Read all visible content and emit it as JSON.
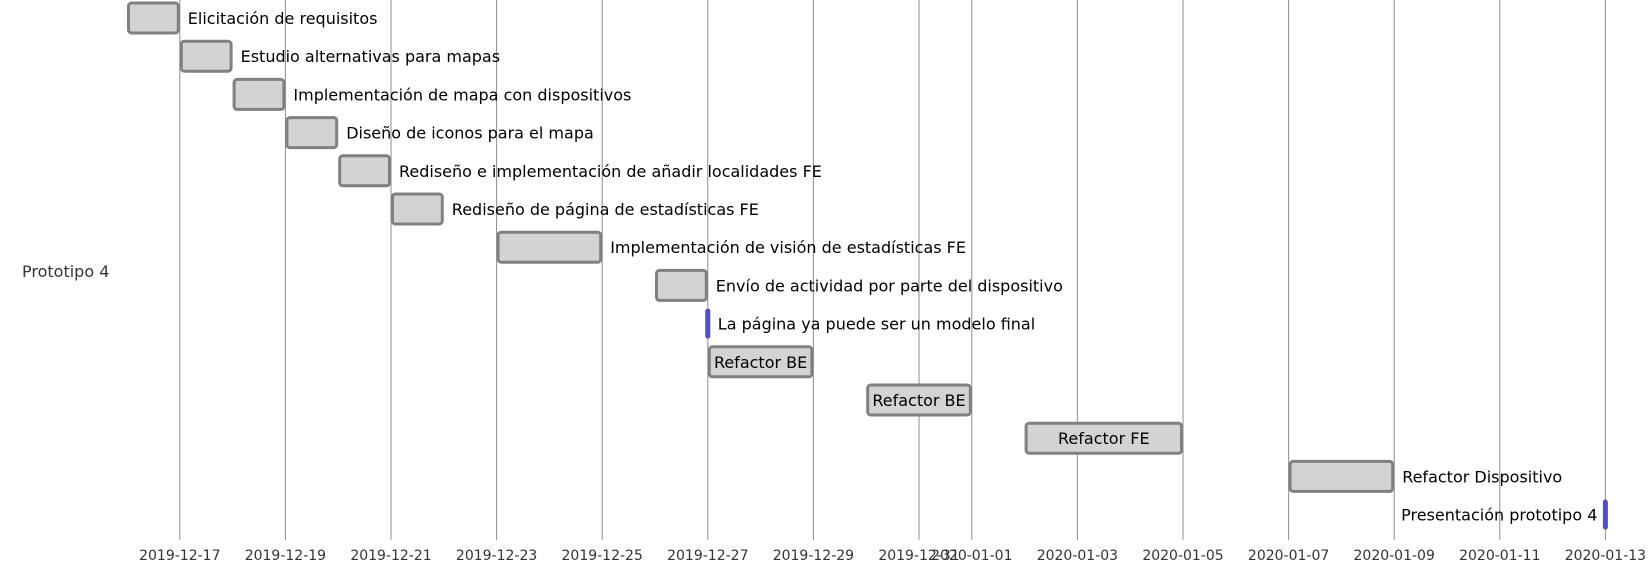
{
  "chart_data": {
    "type": "gantt",
    "section": "Prototipo 4",
    "x_range": [
      "2019-12-15",
      "2020-01-14"
    ],
    "x_ticks": [
      "2019-12-17",
      "2019-12-19",
      "2019-12-21",
      "2019-12-23",
      "2019-12-25",
      "2019-12-27",
      "2019-12-29",
      "2019-12-31",
      "2020-01-01",
      "2020-01-03",
      "2020-01-05",
      "2020-01-07",
      "2020-01-09",
      "2020-01-11",
      "2020-01-13"
    ],
    "colors": {
      "task_fill": "#d3d3d3",
      "task_stroke": "#808080",
      "milestone": "#5050c0",
      "grid": "#d3d3d3"
    },
    "tasks": [
      {
        "name": "Elicitación de requisitos",
        "start": "2019-12-16",
        "end": "2019-12-17",
        "label_position": "right"
      },
      {
        "name": "Estudio alternativas para mapas",
        "start": "2019-12-17",
        "end": "2019-12-18",
        "label_position": "right"
      },
      {
        "name": "Implementación de mapa con dispositivos",
        "start": "2019-12-18",
        "end": "2019-12-19",
        "label_position": "right"
      },
      {
        "name": "Diseño de iconos para el mapa",
        "start": "2019-12-19",
        "end": "2019-12-20",
        "label_position": "right"
      },
      {
        "name": "Rediseño e implementación de añadir localidades FE",
        "start": "2019-12-20",
        "end": "2019-12-21",
        "label_position": "right"
      },
      {
        "name": "Rediseño de página de estadísticas FE",
        "start": "2019-12-21",
        "end": "2019-12-22",
        "label_position": "right"
      },
      {
        "name": "Implementación de visión de estadísticas FE",
        "start": "2019-12-23",
        "end": "2019-12-25",
        "label_position": "right"
      },
      {
        "name": "Envío de actividad por parte del dispositivo",
        "start": "2019-12-26",
        "end": "2019-12-27",
        "label_position": "right"
      },
      {
        "name": "La página ya puede ser un modelo final",
        "start": "2019-12-27",
        "end": "2019-12-27",
        "milestone": true,
        "label_position": "right"
      },
      {
        "name": "Refactor BE",
        "start": "2019-12-27",
        "end": "2019-12-29",
        "label_position": "inside"
      },
      {
        "name": "Refactor BE",
        "start": "2019-12-30",
        "end": "2020-01-01",
        "label_position": "inside"
      },
      {
        "name": "Refactor FE",
        "start": "2020-01-02",
        "end": "2020-01-05",
        "label_position": "inside"
      },
      {
        "name": "Refactor Dispositivo",
        "start": "2020-01-07",
        "end": "2020-01-09",
        "label_position": "right"
      },
      {
        "name": "Presentación prototipo 4",
        "start": "2020-01-13",
        "end": "2020-01-13",
        "milestone": true,
        "label_position": "left"
      }
    ]
  }
}
